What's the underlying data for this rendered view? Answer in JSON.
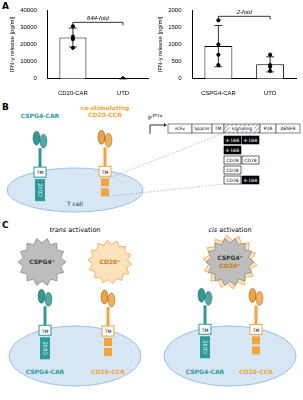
{
  "panel_labels": [
    "A",
    "B",
    "C"
  ],
  "chart_data": [
    {
      "type": "bar",
      "categories": [
        "CD20-CAR",
        "UTD"
      ],
      "values": [
        24000,
        40
      ],
      "errors": [
        5500,
        30
      ],
      "points": [
        [
          30500,
          24500,
          23000,
          18000
        ],
        [
          60,
          30,
          20,
          50
        ]
      ],
      "color": "#ffffff",
      "marker": "circle",
      "y_label": "IFN-γ release [pg/ml]",
      "ylim": [
        0,
        40000
      ],
      "yticks": [
        0,
        10000,
        20000,
        30000,
        40000
      ],
      "grid": false,
      "annotation": "644-fold"
    },
    {
      "type": "bar",
      "categories": [
        "CSPG4-CAR",
        "UTD"
      ],
      "values": [
        950,
        420
      ],
      "errors": [
        600,
        220
      ],
      "points": [
        [
          1700,
          1000,
          700,
          400
        ],
        [
          700,
          400,
          350,
          230
        ]
      ],
      "color": "#ffffff",
      "marker": "circle",
      "y_label": "IFN-γ release [pg/ml]",
      "ylim": [
        0,
        2000
      ],
      "yticks": [
        0,
        500,
        1000,
        1500,
        2000
      ],
      "grid": false,
      "annotation": "2-fold"
    }
  ],
  "diagram_b": {
    "cell": "T cell",
    "car": {
      "name": "CSPG4-CAR",
      "color": "#2e9a9a",
      "domains": [
        "TM",
        "CD3ζ"
      ]
    },
    "ccr": {
      "name": [
        "co-stimulating",
        "CD20-CCR"
      ],
      "color": "#f2a33a",
      "domains": [
        "TM"
      ]
    },
    "construct": {
      "promoter": "P",
      "promoter_sup": "EF1α",
      "elements": [
        "scFv",
        "Spacer",
        "TM",
        "signaling",
        "P2A",
        "ΔEGFR"
      ]
    },
    "signaling_variants": [
      [
        "4-1BB",
        "4-1BB"
      ],
      [
        "4-1BB"
      ],
      [
        "CD28",
        "CD28"
      ],
      [
        "CD28"
      ],
      [
        "CD28",
        "4-1BB"
      ]
    ],
    "domain_colors": {
      "4-1BB": "#000000",
      "CD28": "#ffffff"
    }
  },
  "diagram_c": {
    "trans": {
      "title": [
        "trans",
        "activation"
      ],
      "targets": [
        "CSPG4⁺",
        "CD20⁺"
      ]
    },
    "cis": {
      "title": [
        "cis",
        "activation"
      ],
      "target": [
        "CSPG4⁺",
        "CD20⁺"
      ]
    },
    "car": "CSPG4-CAR",
    "ccr": "CD20-CCR"
  }
}
